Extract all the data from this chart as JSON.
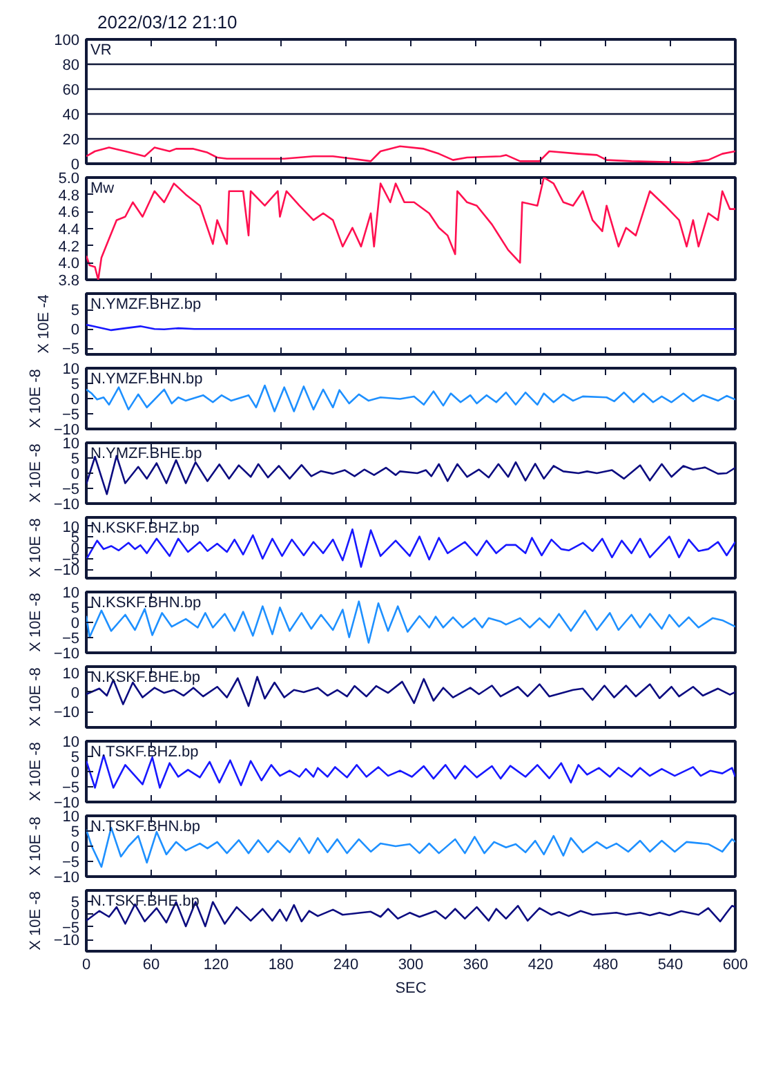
{
  "chart_data": [
    {
      "type": "line",
      "title": "2022/03/12 21:10",
      "annotations": [
        "VR"
      ],
      "tick_labels": "y",
      "grid": "y",
      "xlim": [
        0,
        600
      ],
      "xticks": [
        0,
        60,
        120,
        180,
        240,
        300,
        360,
        420,
        480,
        540,
        600
      ],
      "ylim": [
        0,
        100
      ],
      "yticks": [
        0,
        20,
        40,
        60,
        80,
        100
      ],
      "x": [
        0,
        8,
        21,
        36,
        54,
        63,
        77,
        83,
        99,
        112,
        121,
        130,
        183,
        210,
        228,
        246,
        263,
        272,
        290,
        312,
        326,
        339,
        352,
        383,
        388,
        401,
        419,
        428,
        455,
        472,
        481,
        504,
        557,
        575,
        588,
        600
      ],
      "series": [
        {
          "color": "#ff1050",
          "values": [
            6,
            10,
            13,
            10,
            6,
            13,
            10,
            12,
            12,
            9,
            5,
            4,
            4,
            6,
            6,
            4,
            2,
            10,
            14,
            12,
            8,
            3,
            5,
            6,
            7,
            2,
            2,
            10,
            8,
            7,
            3,
            2,
            1,
            3,
            8,
            10
          ]
        }
      ]
    },
    {
      "type": "line",
      "annotations": [
        "Mw"
      ],
      "tick_labels": "y",
      "xlim": [
        0,
        600
      ],
      "xticks": [
        0,
        60,
        120,
        180,
        240,
        300,
        360,
        420,
        480,
        540,
        600
      ],
      "ylim": [
        3.8,
        5.0
      ],
      "yticks": [
        {
          "value": 3.8,
          "label": "3.8"
        },
        {
          "value": 4.0,
          "label": "4.0"
        },
        {
          "value": 4.2,
          "label": "4.2"
        },
        {
          "value": 4.4,
          "label": "4.4"
        },
        {
          "value": 4.6,
          "label": "4.6"
        },
        {
          "value": 4.8,
          "label": "4.8"
        },
        {
          "value": 5.0,
          "label": "5.0"
        }
      ],
      "x": [
        0,
        3,
        8,
        11,
        14,
        21,
        28,
        36,
        43,
        52,
        63,
        72,
        81,
        92,
        105,
        117,
        121,
        130,
        132,
        145,
        150,
        152,
        165,
        177,
        179,
        185,
        197,
        210,
        219,
        228,
        237,
        246,
        254,
        263,
        266,
        272,
        281,
        286,
        294,
        303,
        317,
        326,
        334,
        341,
        343,
        352,
        361,
        375,
        379,
        390,
        401,
        403,
        417,
        423,
        432,
        441,
        450,
        459,
        468,
        477,
        481,
        492,
        499,
        508,
        521,
        535,
        548,
        555,
        561,
        566,
        575,
        584,
        588,
        595,
        600
      ],
      "series": [
        {
          "color": "#ff1050",
          "values": [
            4.08,
            3.97,
            3.95,
            3.8,
            4.06,
            4.28,
            4.5,
            4.54,
            4.71,
            4.54,
            4.84,
            4.71,
            4.93,
            4.8,
            4.67,
            4.22,
            4.5,
            4.22,
            4.84,
            4.84,
            4.32,
            4.84,
            4.67,
            4.84,
            4.54,
            4.84,
            4.67,
            4.5,
            4.58,
            4.5,
            4.19,
            4.41,
            4.19,
            4.58,
            4.19,
            4.93,
            4.71,
            4.93,
            4.71,
            4.71,
            4.58,
            4.41,
            4.32,
            4.1,
            4.84,
            4.71,
            4.67,
            4.45,
            4.37,
            4.15,
            4.0,
            4.71,
            4.67,
            5.0,
            4.93,
            4.71,
            4.67,
            4.84,
            4.5,
            4.37,
            4.67,
            4.19,
            4.41,
            4.32,
            4.84,
            4.67,
            4.5,
            4.19,
            4.5,
            4.19,
            4.58,
            4.5,
            4.84,
            4.63,
            4.63
          ]
        }
      ]
    },
    {
      "type": "line",
      "annotations": [
        "N.YMZF.BHZ.bp"
      ],
      "ylabel": "X 10E -4",
      "tick_labels": "y",
      "xlim": [
        0,
        600
      ],
      "xticks": [
        0,
        60,
        120,
        180,
        240,
        300,
        360,
        420,
        480,
        540,
        600
      ],
      "ylim": [
        -6.6,
        9.2
      ],
      "yticks": [
        -5,
        0,
        5
      ],
      "x": [
        0,
        5,
        23,
        36,
        50,
        63,
        72,
        85,
        100,
        600
      ],
      "series": [
        {
          "color": "#1818ff",
          "values": [
            1.1,
            0.8,
            -0.3,
            0.2,
            0.7,
            0,
            -0.1,
            0.2,
            0,
            0
          ]
        }
      ]
    },
    {
      "type": "line",
      "annotations": [
        "N.YMZF.BHN.bp"
      ],
      "ylabel": "X 10E -8",
      "tick_labels": "y",
      "xlim": [
        0,
        600
      ],
      "xticks": [
        0,
        60,
        120,
        180,
        240,
        300,
        360,
        420,
        480,
        540,
        600
      ],
      "ylim": [
        -10,
        10
      ],
      "yticks": [
        -10,
        -5,
        0,
        5,
        10
      ],
      "x": [
        0,
        5,
        10,
        16,
        21,
        30,
        39,
        48,
        56,
        72,
        79,
        85,
        92,
        108,
        117,
        125,
        134,
        150,
        157,
        165,
        174,
        183,
        192,
        201,
        210,
        219,
        228,
        234,
        243,
        252,
        261,
        272,
        290,
        303,
        312,
        321,
        330,
        337,
        346,
        355,
        361,
        370,
        379,
        388,
        397,
        406,
        417,
        423,
        432,
        441,
        450,
        459,
        481,
        488,
        497,
        506,
        515,
        524,
        532,
        541,
        552,
        561,
        570,
        584,
        592,
        600
      ],
      "series": [
        {
          "color": "#1e90ff",
          "values": [
            3.0,
            1.7,
            -0.3,
            0.4,
            -2.0,
            3.7,
            -3.6,
            1.4,
            -2.9,
            3.0,
            -1.6,
            0.4,
            -0.7,
            1.1,
            -1.2,
            1.1,
            -0.7,
            1.1,
            -2.9,
            4.3,
            -4.2,
            3.7,
            -4.2,
            4.0,
            -3.6,
            3.0,
            -2.9,
            2.8,
            -1.6,
            1.4,
            -0.7,
            0.4,
            -0.1,
            0.7,
            -2.0,
            2.4,
            -2.3,
            1.7,
            -1.2,
            1.1,
            -1.6,
            1.1,
            -1.2,
            2.0,
            -2.0,
            2.0,
            -2.0,
            1.7,
            -1.2,
            1.4,
            -0.7,
            0.7,
            0.4,
            -0.9,
            2.0,
            -1.2,
            1.7,
            -1.2,
            0.7,
            -1.2,
            1.7,
            -0.9,
            1.2,
            -0.7,
            0.9,
            -0.3
          ]
        }
      ]
    },
    {
      "type": "line",
      "annotations": [
        "N.YMZF.BHE.bp"
      ],
      "ylabel": "X 10E -8",
      "tick_labels": "y",
      "xlim": [
        0,
        600
      ],
      "xticks": [
        0,
        60,
        120,
        180,
        240,
        300,
        360,
        420,
        480,
        540,
        600
      ],
      "ylim": [
        -10,
        10
      ],
      "yticks": [
        -10,
        -5,
        0,
        5,
        10
      ],
      "x": [
        0,
        8,
        19,
        28,
        36,
        48,
        56,
        65,
        74,
        83,
        92,
        101,
        112,
        123,
        132,
        141,
        152,
        159,
        168,
        178,
        188,
        199,
        208,
        217,
        228,
        239,
        248,
        257,
        266,
        277,
        286,
        290,
        306,
        314,
        319,
        326,
        334,
        343,
        352,
        363,
        372,
        381,
        390,
        397,
        406,
        415,
        423,
        432,
        441,
        455,
        463,
        472,
        486,
        497,
        512,
        521,
        532,
        541,
        552,
        561,
        572,
        584,
        592,
        600
      ],
      "series": [
        {
          "color": "#0c0c80",
          "values": [
            -3.6,
            5.4,
            -6.9,
            5.7,
            -3.3,
            2.1,
            -1.8,
            3.3,
            -3.3,
            4.3,
            -3.3,
            3.6,
            -2.6,
            2.9,
            -1.8,
            2.6,
            -1.2,
            3.0,
            -1.4,
            2.4,
            -1.8,
            2.7,
            -1.0,
            0.7,
            -0.2,
            1.0,
            -1.0,
            1.2,
            -0.6,
            1.8,
            -0.6,
            0.6,
            0,
            1.0,
            -1.0,
            3.0,
            -2.6,
            3.0,
            -1.2,
            1.2,
            -1.4,
            3.0,
            -1.2,
            3.6,
            -2.4,
            3.1,
            -1.8,
            2.4,
            0.6,
            0,
            0.6,
            0,
            1.0,
            -1.8,
            2.6,
            -2.4,
            3.0,
            -1.2,
            2.4,
            1.2,
            1.9,
            -0.2,
            0,
            1.8
          ]
        }
      ]
    },
    {
      "type": "line",
      "annotations": [
        "N.KSKF.BHZ.bp"
      ],
      "ylabel": "X 10E -8",
      "tick_labels": "y",
      "xlim": [
        0,
        600
      ],
      "xticks": [
        0,
        60,
        120,
        180,
        240,
        300,
        360,
        420,
        480,
        540,
        600
      ],
      "ylim": [
        -14,
        14
      ],
      "yticks": [
        -10,
        -5,
        0,
        5,
        10
      ],
      "x": [
        0,
        10,
        16,
        23,
        30,
        39,
        45,
        50,
        56,
        65,
        77,
        85,
        94,
        105,
        112,
        121,
        130,
        137,
        145,
        154,
        163,
        172,
        181,
        190,
        201,
        210,
        219,
        228,
        237,
        246,
        254,
        263,
        272,
        286,
        299,
        308,
        317,
        326,
        334,
        350,
        361,
        370,
        379,
        388,
        397,
        406,
        412,
        421,
        430,
        439,
        446,
        459,
        468,
        477,
        486,
        495,
        504,
        512,
        521,
        539,
        548,
        557,
        566,
        575,
        584,
        592,
        600
      ],
      "series": [
        {
          "color": "#1818ff",
          "values": [
            -5.4,
            3.3,
            -0.6,
            0.8,
            -1.2,
            2.3,
            -0.6,
            1.2,
            -2.5,
            4.2,
            -3.8,
            4.2,
            -1.9,
            2.7,
            -1.5,
            1.9,
            -1.9,
            3.8,
            -3.1,
            5.8,
            -5.0,
            4.2,
            -3.8,
            3.8,
            -3.5,
            2.7,
            -2.5,
            3.8,
            -5.8,
            8.5,
            -8.8,
            8.1,
            -3.8,
            3.3,
            -3.8,
            5.2,
            -5.4,
            4.6,
            -2.5,
            2.7,
            -3.5,
            3.3,
            -2.5,
            1.3,
            1.3,
            -2.5,
            4.6,
            -3.5,
            3.8,
            -0.6,
            -1.2,
            2.3,
            -1.5,
            4.2,
            -4.4,
            3.3,
            -2.5,
            4.2,
            -4.4,
            5.2,
            -4.4,
            3.8,
            -1.5,
            -0.6,
            2.7,
            -3.5,
            2.7
          ]
        }
      ]
    },
    {
      "type": "line",
      "annotations": [
        "N.KSKF.BHN.bp"
      ],
      "ylabel": "X 10E -8",
      "tick_labels": "y",
      "xlim": [
        0,
        600
      ],
      "xticks": [
        0,
        60,
        120,
        180,
        240,
        300,
        360,
        420,
        480,
        540,
        600
      ],
      "ylim": [
        -10,
        10
      ],
      "yticks": [
        -10,
        -5,
        0,
        5,
        10
      ],
      "x": [
        0,
        3,
        14,
        23,
        36,
        45,
        54,
        61,
        70,
        79,
        92,
        103,
        110,
        117,
        128,
        137,
        145,
        154,
        163,
        172,
        179,
        188,
        199,
        208,
        217,
        228,
        237,
        243,
        252,
        261,
        270,
        279,
        288,
        297,
        308,
        317,
        323,
        330,
        339,
        348,
        359,
        366,
        372,
        383,
        388,
        401,
        410,
        419,
        428,
        437,
        448,
        461,
        472,
        484,
        492,
        504,
        512,
        521,
        532,
        539,
        548,
        557,
        566,
        579,
        588,
        600
      ],
      "series": [
        {
          "color": "#1e90ff",
          "values": [
            2.1,
            -4.9,
            3.9,
            -2.8,
            2.5,
            -2.5,
            4.4,
            -4.2,
            3.1,
            -1.4,
            1.1,
            -1.7,
            3.1,
            -1.7,
            2.8,
            -2.8,
            3.5,
            -4.4,
            5.3,
            -3.9,
            4.9,
            -2.8,
            3.1,
            -2.1,
            2.5,
            -2.5,
            4.2,
            -4.9,
            6.9,
            -6.7,
            6.3,
            -2.8,
            5.3,
            -3.1,
            2.1,
            -1.7,
            1.9,
            -1.7,
            1.7,
            -1.7,
            1.4,
            -1.7,
            1.4,
            0.3,
            -0.7,
            1.4,
            -1.7,
            1.4,
            -1.7,
            2.8,
            -2.8,
            3.9,
            -2.5,
            3.1,
            -2.5,
            2.5,
            -1.7,
            2.8,
            -2.1,
            2.5,
            -1.4,
            1.7,
            -1.7,
            1.4,
            0.7,
            -1.4
          ]
        }
      ]
    },
    {
      "type": "line",
      "annotations": [
        "N.KSKF.BHE.bp"
      ],
      "ylabel": "X 10E -8",
      "tick_labels": "y",
      "xlim": [
        0,
        600
      ],
      "xticks": [
        0,
        60,
        120,
        180,
        240,
        300,
        360,
        420,
        480,
        540,
        600
      ],
      "ylim": [
        -18,
        13
      ],
      "yticks": [
        -10,
        0,
        10
      ],
      "x": [
        0,
        12,
        19,
        25,
        34,
        43,
        52,
        63,
        72,
        81,
        90,
        99,
        108,
        121,
        130,
        140,
        150,
        158,
        165,
        174,
        183,
        192,
        201,
        214,
        223,
        232,
        241,
        248,
        259,
        268,
        279,
        292,
        303,
        312,
        321,
        330,
        339,
        355,
        363,
        375,
        383,
        399,
        408,
        419,
        428,
        450,
        459,
        468,
        479,
        488,
        499,
        508,
        521,
        530,
        541,
        548,
        561,
        570,
        584,
        595,
        600
      ],
      "series": [
        {
          "color": "#0c0c80",
          "values": [
            -1.1,
            1.8,
            -1.8,
            6.2,
            -6.2,
            4.9,
            -2.7,
            2.2,
            -0.4,
            1.1,
            -1.8,
            2.2,
            -2.2,
            2.7,
            -2.7,
            7.1,
            -7.1,
            7.8,
            -3.3,
            4.9,
            -2.7,
            1.1,
            0,
            2.2,
            -1.8,
            1.1,
            -2.2,
            3.1,
            -2.2,
            3.1,
            -0.4,
            5.3,
            -5.6,
            6.7,
            -4.4,
            2.2,
            -2.7,
            2.2,
            -1.1,
            3.3,
            -2.2,
            2.7,
            -2.2,
            4.0,
            -2.2,
            1.1,
            1.8,
            -4.0,
            3.3,
            -2.7,
            3.3,
            -2.2,
            4.0,
            -3.1,
            2.7,
            -2.2,
            2.7,
            -1.8,
            1.8,
            -1.3,
            0
          ]
        }
      ]
    },
    {
      "type": "line",
      "annotations": [
        "N.TSKF.BHZ.bp"
      ],
      "ylabel": "X 10E -8",
      "tick_labels": "y",
      "xlim": [
        0,
        600
      ],
      "xticks": [
        0,
        60,
        120,
        180,
        240,
        300,
        360,
        420,
        480,
        540,
        600
      ],
      "ylim": [
        -10,
        10
      ],
      "yticks": [
        -10,
        -5,
        0,
        5,
        10
      ],
      "x": [
        0,
        8,
        16,
        25,
        36,
        52,
        61,
        68,
        77,
        85,
        94,
        105,
        114,
        123,
        133,
        143,
        152,
        162,
        171,
        179,
        188,
        197,
        203,
        210,
        214,
        223,
        230,
        241,
        250,
        259,
        270,
        279,
        290,
        301,
        312,
        321,
        332,
        341,
        350,
        361,
        375,
        383,
        392,
        406,
        417,
        428,
        439,
        448,
        455,
        463,
        474,
        484,
        492,
        504,
        512,
        521,
        532,
        544,
        561,
        568,
        577,
        588,
        597,
        600
      ],
      "series": [
        {
          "color": "#1818ff",
          "values": [
            3.5,
            -5.3,
            5.4,
            -5.3,
            2.2,
            -4.2,
            4.7,
            -5.3,
            2.8,
            -1.7,
            0.6,
            -1.9,
            3.2,
            -3.6,
            3.7,
            -4.5,
            3.5,
            -2.9,
            2.2,
            -1.4,
            0.3,
            -1.7,
            0.9,
            -1.7,
            1.2,
            -1.7,
            1.5,
            -1.9,
            2.2,
            -1.7,
            1.5,
            -1.4,
            0.3,
            -1.7,
            1.8,
            -2.3,
            2.2,
            -2.3,
            1.9,
            -1.9,
            1.8,
            -2.3,
            1.9,
            -1.7,
            2.2,
            -2.2,
            2.8,
            -3.6,
            2.2,
            -1.0,
            1.2,
            -1.7,
            1.3,
            -1.7,
            1.2,
            -1.4,
            0.9,
            -1.4,
            1.5,
            -1.4,
            0.3,
            -0.6,
            1.2,
            -1.7
          ]
        }
      ]
    },
    {
      "type": "line",
      "annotations": [
        "N.TSKF.BHN.bp"
      ],
      "ylabel": "X 10E -8",
      "tick_labels": "y",
      "xlim": [
        0,
        600
      ],
      "xticks": [
        0,
        60,
        120,
        180,
        240,
        300,
        360,
        420,
        480,
        540,
        600
      ],
      "ylim": [
        -10,
        10
      ],
      "yticks": [
        -10,
        -5,
        0,
        5,
        10
      ],
      "x": [
        0,
        5,
        14,
        23,
        32,
        39,
        48,
        56,
        65,
        74,
        83,
        92,
        105,
        112,
        121,
        130,
        141,
        150,
        159,
        168,
        177,
        188,
        197,
        206,
        214,
        223,
        232,
        241,
        252,
        263,
        272,
        286,
        299,
        308,
        317,
        326,
        341,
        350,
        359,
        368,
        377,
        388,
        397,
        406,
        415,
        423,
        432,
        441,
        448,
        459,
        472,
        481,
        490,
        501,
        512,
        521,
        532,
        544,
        555,
        575,
        588,
        597,
        600
      ],
      "series": [
        {
          "color": "#1e90ff",
          "values": [
            5.4,
            0,
            -6.8,
            6.1,
            -3.4,
            0,
            3.4,
            -5.4,
            4.7,
            -2.7,
            1.4,
            -1.4,
            0.9,
            -0.7,
            1.4,
            -2.3,
            2.0,
            -2.3,
            2.0,
            -2.0,
            1.8,
            -2.0,
            2.7,
            -2.3,
            2.7,
            -2.0,
            2.3,
            -2.3,
            2.3,
            -1.8,
            0.9,
            0,
            0.7,
            -2.3,
            0.9,
            -2.3,
            2.3,
            -2.3,
            3.1,
            -2.3,
            1.4,
            -0.4,
            0.7,
            -2.0,
            1.8,
            -2.7,
            3.4,
            -3.1,
            2.7,
            -2.0,
            1.4,
            -0.7,
            0.9,
            -1.8,
            1.8,
            -1.8,
            1.8,
            -1.8,
            1.4,
            0.7,
            -1.8,
            2.3,
            1.4
          ]
        }
      ]
    },
    {
      "type": "line",
      "annotations": [
        "N.TSKF.BHE.bp"
      ],
      "ylabel": "X 10E -8",
      "xlabel": "SEC",
      "xlim": [
        0,
        600
      ],
      "xticks": [
        0,
        60,
        120,
        180,
        240,
        300,
        360,
        420,
        480,
        540,
        600
      ],
      "ylim": [
        -14.5,
        9.2
      ],
      "yticks": [
        -10,
        -5,
        0,
        5
      ],
      "x": [
        0,
        12,
        21,
        28,
        36,
        45,
        54,
        65,
        74,
        83,
        92,
        101,
        110,
        117,
        128,
        139,
        152,
        163,
        172,
        179,
        185,
        192,
        199,
        206,
        214,
        228,
        237,
        254,
        263,
        272,
        279,
        288,
        299,
        308,
        323,
        332,
        341,
        350,
        361,
        372,
        379,
        388,
        399,
        408,
        419,
        430,
        437,
        446,
        457,
        468,
        490,
        499,
        512,
        521,
        530,
        539,
        550,
        566,
        575,
        586,
        592,
        597,
        600
      ],
      "series": [
        {
          "color": "#0c0c80",
          "values": [
            -2.6,
            1.2,
            -1.1,
            2.7,
            -3.8,
            3.8,
            -2.9,
            2.3,
            -3.3,
            4.7,
            -4.8,
            4.7,
            -4.8,
            4.7,
            -3.8,
            2.7,
            -2.6,
            2.0,
            -2.6,
            1.7,
            -2.6,
            3.5,
            -2.9,
            1.2,
            -0.8,
            1.7,
            -0.3,
            0.5,
            0.9,
            -1.1,
            2.0,
            -1.8,
            0.5,
            -1.1,
            1.2,
            -1.8,
            2.0,
            -1.8,
            2.7,
            -2.6,
            2.0,
            -1.8,
            3.2,
            -2.6,
            2.3,
            -0.3,
            0.8,
            -0.8,
            1.2,
            -0.3,
            0.5,
            -0.3,
            0.5,
            -0.5,
            0.5,
            -0.5,
            1.1,
            -0.3,
            2.3,
            -2.9,
            0.5,
            3.2,
            2.7
          ]
        }
      ]
    }
  ]
}
